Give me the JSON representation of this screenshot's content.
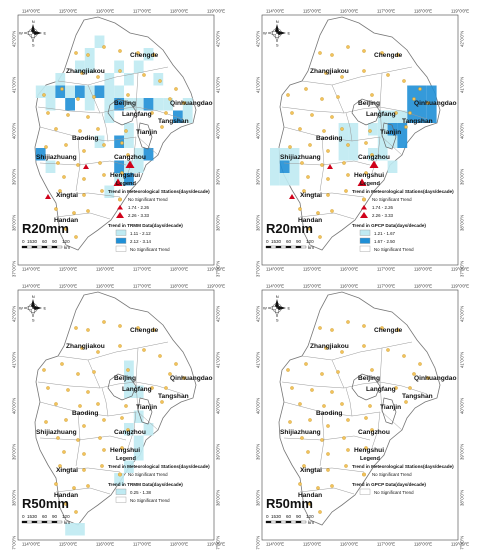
{
  "axis": {
    "lon_ticks": [
      "114°0'0\"E",
      "115°0'0\"E",
      "116°0'0\"E",
      "117°0'0\"E",
      "118°0'0\"E",
      "119°0'0\"E"
    ],
    "lat_ticks": [
      "42°0'0\"N",
      "41°0'0\"N",
      "40°0'0\"N",
      "39°0'0\"N",
      "38°0'0\"N",
      "37°0'0\"N"
    ]
  },
  "north_arrow": {
    "n": "N",
    "s": "S",
    "e": "E",
    "w": "W"
  },
  "cities": [
    "Chengde",
    "Zhangjiakou",
    "Beijing",
    "Qinhuangdao",
    "Langfang",
    "Tangshan",
    "Tianjin",
    "Baoding",
    "Shijiazhuang",
    "Cangzhou",
    "Hengshui",
    "Xingtai",
    "Handan"
  ],
  "scale_bar": {
    "labels": [
      "0",
      "15",
      "30",
      "60",
      "90",
      "120"
    ],
    "unit": "km"
  },
  "panels": [
    {
      "name": "R20mm",
      "legend": {
        "title": "Legend",
        "stations_heading": "Trend in Meteorological Stations(days/decade)",
        "station_items": [
          {
            "symbol": "circle",
            "label": "No Significant Trend"
          },
          {
            "symbol": "triangle-small",
            "label": "1.74 - 2.26"
          },
          {
            "symbol": "triangle-large",
            "label": "2.26 - 3.33"
          }
        ],
        "grid_heading": "Trend in TRMM Data(days/decade)",
        "grid_items": [
          {
            "color": "#bfeaf2",
            "label": "1.11 - 2.12"
          },
          {
            "color": "#1f8fd6",
            "label": "2.12 - 3.14"
          },
          {
            "color": "#ffffff",
            "label": "No Significant Trend"
          }
        ]
      },
      "stations": {
        "small_triangles": 2,
        "large_triangles": 2
      }
    },
    {
      "name": "R20mm",
      "legend": {
        "title": "Legend",
        "stations_heading": "Trend in Meteorological Stations(days/decade)",
        "station_items": [
          {
            "symbol": "circle",
            "label": "No Significant Trend"
          },
          {
            "symbol": "triangle-small",
            "label": "1.74 - 2.26"
          },
          {
            "symbol": "triangle-large",
            "label": "2.26 - 3.33"
          }
        ],
        "grid_heading": "Trend in GPCP Data(days/decade)",
        "grid_items": [
          {
            "color": "#bfeaf2",
            "label": "1.21 - 1.67"
          },
          {
            "color": "#1f8fd6",
            "label": "1.67 - 2.50"
          },
          {
            "color": "#ffffff",
            "label": "No Significant Trend"
          }
        ]
      },
      "stations": {
        "small_triangles": 2,
        "large_triangles": 2
      }
    },
    {
      "name": "R50mm",
      "legend": {
        "title": "Legend",
        "stations_heading": "Trend in Meteorological Stations(days/decade)",
        "station_items": [
          {
            "symbol": "circle",
            "label": "No Significant Trend"
          }
        ],
        "grid_heading": "Trend in TRMM Data(days/decade)",
        "grid_items": [
          {
            "color": "#bfeaf2",
            "label": "0.25 - 1.38"
          },
          {
            "color": "#ffffff",
            "label": "No Significant Trend"
          }
        ]
      },
      "stations": {
        "small_triangles": 0,
        "large_triangles": 0
      }
    },
    {
      "name": "R50mm",
      "legend": {
        "title": "Legend",
        "stations_heading": "Trend in Meteorological Stations(days/decade)",
        "station_items": [
          {
            "symbol": "circle",
            "label": "No Significant Trend"
          }
        ],
        "grid_heading": "Trend in GPCP Data(days/decade)",
        "grid_items": [
          {
            "color": "#ffffff",
            "label": "No Significant Trend"
          }
        ]
      },
      "stations": {
        "small_triangles": 0,
        "large_triangles": 0
      }
    }
  ]
}
